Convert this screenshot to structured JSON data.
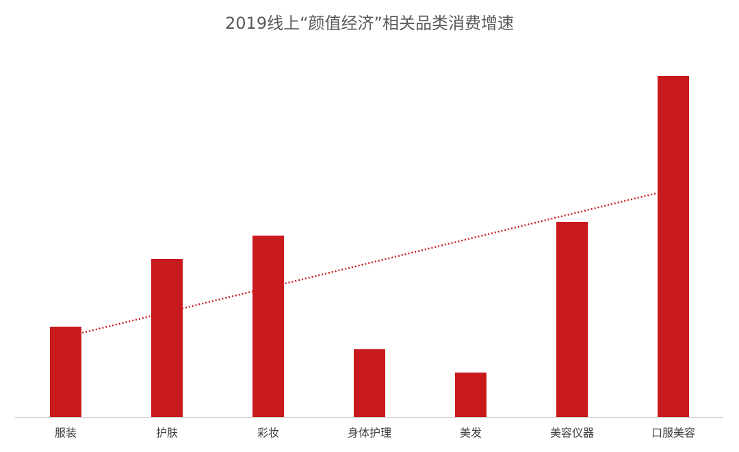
{
  "chart_data": {
    "type": "bar",
    "title": "2019线上“颜值经济”相关品类消费增速",
    "categories": [
      "服装",
      "护肤",
      "彩妆",
      "身体护理",
      "美发",
      "美容仪器",
      "口服美容"
    ],
    "values": [
      132,
      231,
      265,
      99,
      65,
      285,
      498
    ],
    "color": "#c8191c",
    "ylim": [
      0,
      540
    ],
    "trendline": true,
    "trendline_color": "#c8191c"
  }
}
